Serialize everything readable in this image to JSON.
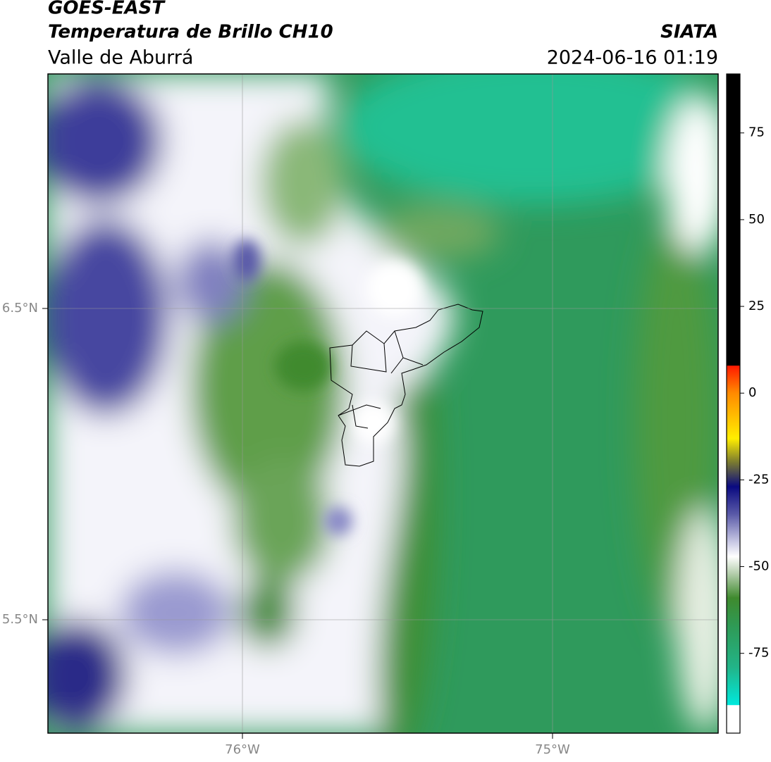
{
  "header": {
    "title": "GOES-EAST",
    "subtitle": "Temperatura de Brillo CH10",
    "region": "Valle de Aburrá",
    "source": "SIATA",
    "datetime": "2024-06-16 01:19"
  },
  "map": {
    "lat_labels": [
      "6.5°N",
      "5.5°N"
    ],
    "lon_labels": [
      "76°W",
      "75°W"
    ]
  },
  "colorbar": {
    "lim": [
      -98,
      92
    ],
    "ticks": [
      75,
      50,
      25,
      0,
      -25,
      -50,
      -75
    ]
  }
}
